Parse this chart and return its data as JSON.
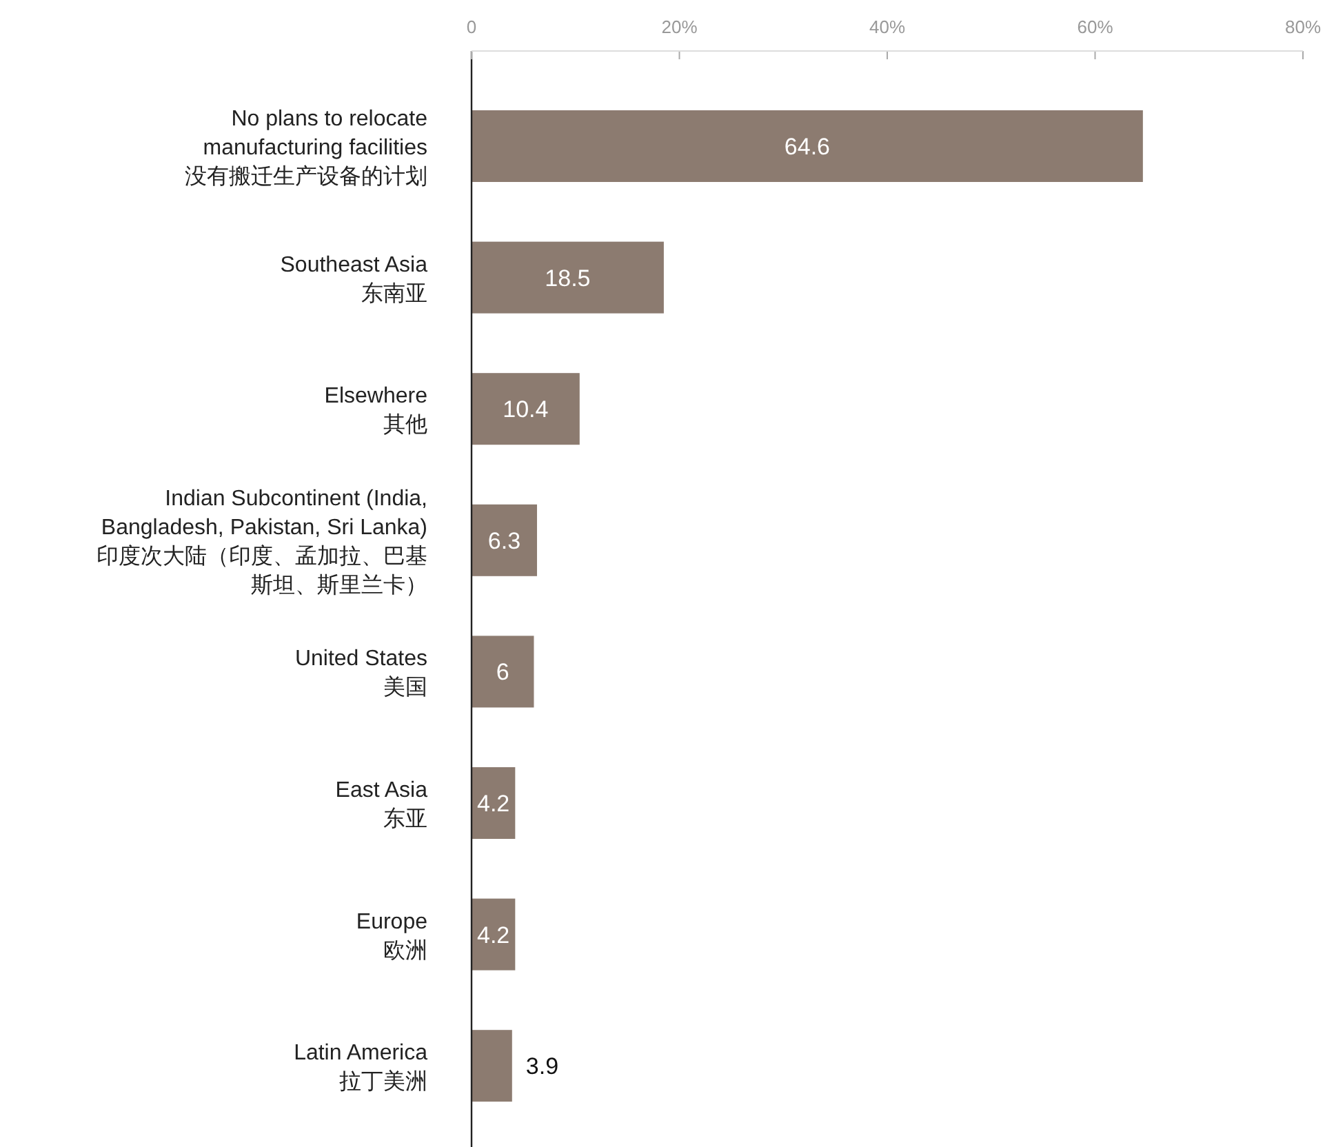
{
  "chart_data": {
    "type": "bar",
    "orientation": "horizontal",
    "categories": [
      "No plans to relocate\nmanufacturing facilities\n没有搬迁生产设备的计划",
      "Southeast Asia\n东南亚",
      "Elsewhere\n其他",
      "Indian Subcontinent (India,\nBangladesh, Pakistan, Sri Lanka)\n印度次大陆（印度、孟加拉、巴基斯坦、斯里兰卡）",
      "United States\n美国",
      "East Asia\n东亚",
      "Europe\n欧洲",
      "Latin America\n拉丁美洲"
    ],
    "values": [
      64.6,
      18.5,
      10.4,
      6.3,
      6,
      4.2,
      4.2,
      3.9
    ],
    "color": "#8c7b70",
    "xlim": [
      0,
      80
    ],
    "xticks": [
      0,
      {
        "value": 20,
        "label": "20%"
      },
      {
        "value": 40,
        "label": "40%"
      },
      {
        "value": 60,
        "label": "60%"
      },
      {
        "value": 80,
        "label": "80%"
      }
    ],
    "data_labels": true
  }
}
